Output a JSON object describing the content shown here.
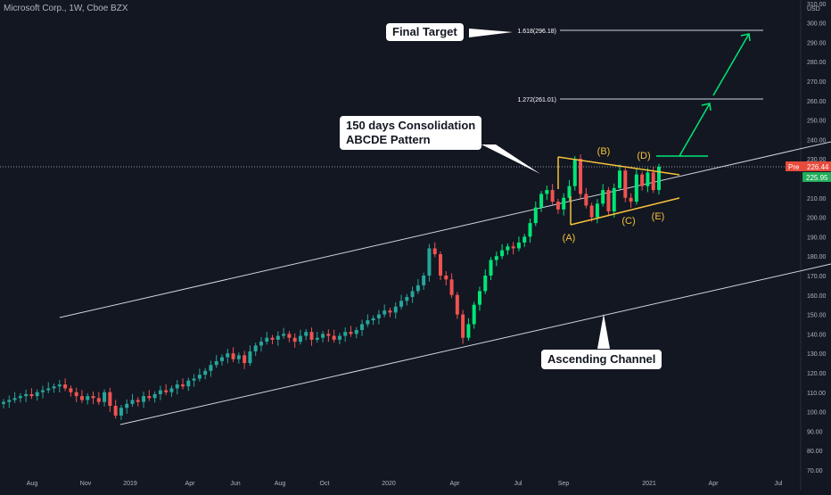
{
  "header": {
    "symbol": "Microsoft Corp., 1W, Cboe BZX",
    "currency": "USD"
  },
  "price_tags": {
    "pre_label": "Pre",
    "pre_value": "226.44",
    "last_value": "225.95"
  },
  "callouts": {
    "final_target": "Final Target",
    "consolidation_line1": "150 days Consolidation",
    "consolidation_line2": "ABCDE Pattern",
    "ascending_channel": "Ascending Channel"
  },
  "fib_levels": {
    "level_1618": "1.618(296.18)",
    "level_1272": "1.272(261.01)"
  },
  "wave_labels": [
    "(A)",
    "(B)",
    "(C)",
    "(D)",
    "(E)"
  ],
  "colors": {
    "background": "#131722",
    "up": "#26a69a",
    "up_bright": "#00e676",
    "down": "#ef5350",
    "pattern": "#f7c23a",
    "arrow": "#00e676",
    "channel": "#d1d4dc"
  },
  "chart_data": {
    "type": "candlestick",
    "title": "Microsoft Corp., 1W, Cboe BZX",
    "ylabel": "USD",
    "y_ticks": [
      "70.00",
      "80.00",
      "90.00",
      "100.00",
      "110.00",
      "120.00",
      "130.00",
      "140.00",
      "150.00",
      "160.00",
      "170.00",
      "180.00",
      "190.00",
      "200.00",
      "210.00",
      "220.00",
      "230.00",
      "240.00",
      "250.00",
      "260.00",
      "270.00",
      "280.00",
      "290.00",
      "300.00",
      "310.00"
    ],
    "x_ticks": [
      "Aug",
      "Nov",
      "2019",
      "Apr",
      "Jun",
      "Aug",
      "Oct",
      "2020",
      "Apr",
      "Jul",
      "Sep",
      "2021",
      "Apr",
      "Jul"
    ],
    "ylim": [
      68,
      312
    ],
    "closes": [
      105,
      106,
      107,
      108,
      109,
      108,
      110,
      111,
      112,
      113,
      114,
      112,
      110,
      108,
      106,
      108,
      107,
      105,
      110,
      103,
      98,
      102,
      104,
      106,
      105,
      108,
      107,
      109,
      111,
      110,
      112,
      114,
      113,
      116,
      117,
      119,
      121,
      124,
      126,
      128,
      130,
      127,
      129,
      125,
      131,
      134,
      136,
      138,
      137,
      139,
      140,
      138,
      136,
      139,
      141,
      137,
      138,
      140,
      139,
      137,
      139,
      141,
      140,
      142,
      145,
      147,
      148,
      150,
      152,
      151,
      154,
      157,
      159,
      162,
      165,
      170,
      184,
      181,
      170,
      168,
      160,
      150,
      138,
      145,
      155,
      162,
      170,
      178,
      180,
      183,
      185,
      184,
      187,
      190,
      197,
      205,
      212,
      214,
      208,
      204,
      210,
      216,
      230,
      212,
      206,
      200,
      207,
      214,
      203,
      215,
      224,
      210,
      208,
      222,
      216,
      223,
      214,
      226
    ],
    "annotations": {
      "final_target": 296.18,
      "fib_1272": 261.01,
      "last_price": 225.95,
      "pre_market": 226.44,
      "consolidation": "ABCDE triangle (A)-(E)",
      "channel": "Ascending Channel"
    },
    "grid": false,
    "legend": "none"
  }
}
